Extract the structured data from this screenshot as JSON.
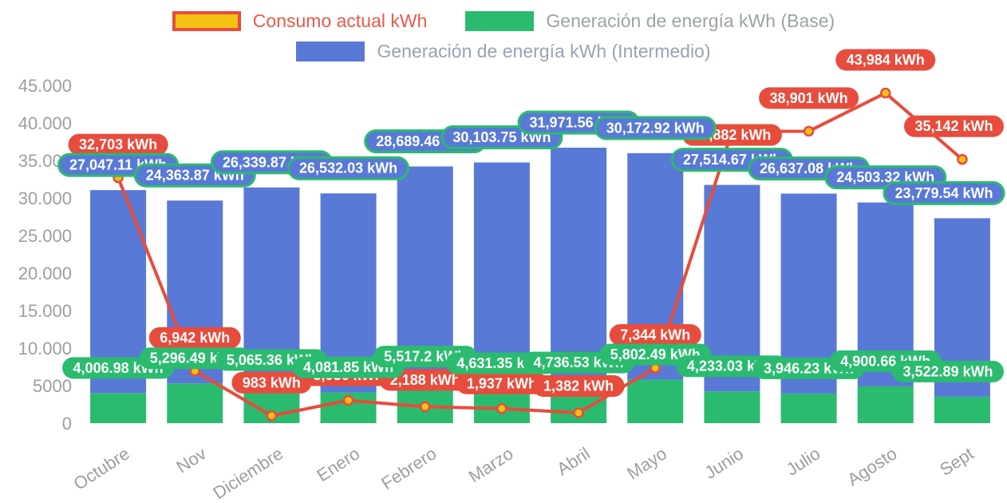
{
  "chart_data": {
    "type": "bar",
    "stacked": true,
    "grid": false,
    "legend_position": "top",
    "axis_text_color": "#9e9e9e",
    "ylim": [
      0,
      45000
    ],
    "yticks": {
      "values": [
        0,
        5000,
        10000,
        15000,
        20000,
        25000,
        30000,
        35000,
        40000,
        45000
      ],
      "labels": [
        "0",
        "5000",
        "10.000",
        "15.000",
        "20.000",
        "25.000",
        "30.000",
        "35.000",
        "40.000",
        "45.000"
      ]
    },
    "categories": [
      "Octubre",
      "Nov",
      "Diciembre",
      "Enero",
      "Febrero",
      "Marzo",
      "Abril",
      "Mayo",
      "Junio",
      "Julio",
      "Agosto",
      "Sept"
    ],
    "series": [
      {
        "key": "consumo",
        "name": "Consumo actual kWh",
        "type": "line",
        "color": "#e74c3c",
        "point_fill": "#f3c212",
        "legend_swatch": {
          "fill": "#f3c212",
          "border": "#e74c3c"
        },
        "legend_text_color": "#e8594a",
        "values": [
          32703,
          6942,
          983,
          3036,
          2188,
          1937,
          1382,
          7344,
          38882,
          38901,
          43984,
          35142
        ],
        "labels": [
          "32,703 kWh",
          "6,942 kWh",
          "983 kWh",
          "3,036 kWh",
          "2,188 kWh",
          "1,937 kWh",
          "1,382 kWh",
          "7,344 kWh",
          "38,882 kWh",
          "38,901 kWh",
          "43,984 kWh",
          "35,142 kWh"
        ],
        "label_pill": {
          "fill": "#e74c3c",
          "text": "#ffffff"
        },
        "label_dy": [
          0,
          0,
          0,
          10,
          8,
          10,
          8,
          0,
          46,
          0,
          0,
          0
        ]
      },
      {
        "key": "base",
        "name": "Generación de energía kWh (Base)",
        "type": "bar",
        "color": "#2abb6f",
        "legend_text_color": "#9aa59e",
        "values": [
          4006.98,
          5296.49,
          5065.36,
          4081.85,
          5517.2,
          4631.35,
          4736.53,
          5802.49,
          4233.03,
          3946.23,
          4900.66,
          3522.89
        ],
        "labels": [
          "4,006.98 kWh",
          "5,296.49 kWh",
          "5,065.36 kWh",
          "4,081.85 kWh",
          "5,517.2 kWh",
          "4,631.35 kWh",
          "4,736.53 kWh",
          "5,802.49 kWh",
          "4,233.03 kWh",
          "3,946.23 kWh",
          "4,900.66 kWh",
          "3,522.89 kWh"
        ],
        "label_pill": {
          "fill": "#2abb6f",
          "text": "#ffffff"
        }
      },
      {
        "key": "intermedio",
        "name": "Generación de energía kWh (Intermedio)",
        "type": "bar",
        "color": "#5879d6",
        "legend_text_color": "#99a2b3",
        "values": [
          27047.11,
          24363.87,
          26339.87,
          26532.03,
          28689.46,
          30103.75,
          31971.56,
          30172.92,
          27514.67,
          26637.08,
          24503.32,
          23779.54
        ],
        "labels": [
          "27,047.11 kWh",
          "24,363.87 kWh",
          "26,339.87 kWh",
          "26,532.03 kWh",
          "28,689.46 kWh",
          "30,103.75 kWh",
          "31,971.56 kWh",
          "30,172.92 kWh",
          "27,514.67 kWh",
          "26,637.08 kWh",
          "24,503.32 kWh",
          "23,779.54 kWh"
        ],
        "label_pill": {
          "fill": "#5879d6",
          "text": "#ffffff",
          "border": "#2abb6f"
        }
      }
    ]
  }
}
